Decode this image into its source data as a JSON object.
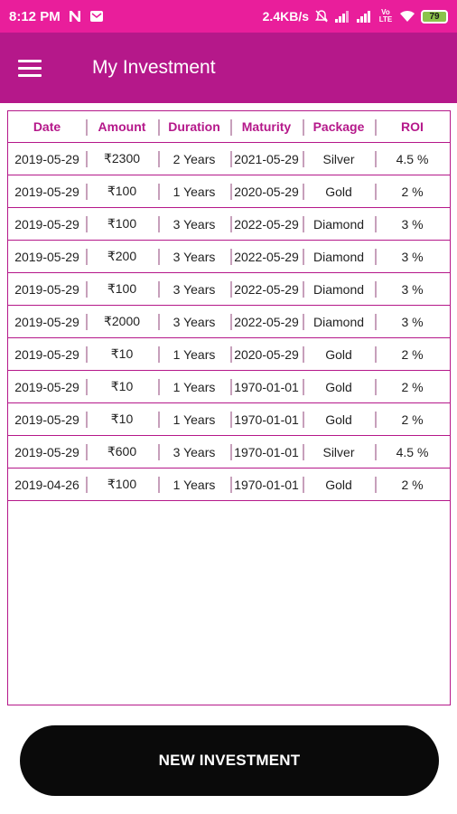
{
  "status_bar": {
    "time": "8:12 PM",
    "speed": "2.4KB/s",
    "battery": "79",
    "icons": [
      "n-notification-icon",
      "mail-icon",
      "mute-icon",
      "signal-icon",
      "signal-icon",
      "volte-icon",
      "wifi-icon",
      "battery-icon"
    ],
    "volte": "Vo LTE"
  },
  "app_bar": {
    "title": "My Investment",
    "menu_icon": "hamburger-menu-icon"
  },
  "table": {
    "columns": [
      "Date",
      "Amount",
      "Duration",
      "Maturity",
      "Package",
      "ROI"
    ],
    "rows": [
      [
        "2019-05-29",
        "₹2300",
        "2 Years",
        "2021-05-29",
        "Silver",
        "4.5 %"
      ],
      [
        "2019-05-29",
        "₹100",
        "1 Years",
        "2020-05-29",
        "Gold",
        "2 %"
      ],
      [
        "2019-05-29",
        "₹100",
        "3 Years",
        "2022-05-29",
        "Diamond",
        "3 %"
      ],
      [
        "2019-05-29",
        "₹200",
        "3 Years",
        "2022-05-29",
        "Diamond",
        "3 %"
      ],
      [
        "2019-05-29",
        "₹100",
        "3 Years",
        "2022-05-29",
        "Diamond",
        "3 %"
      ],
      [
        "2019-05-29",
        "₹2000",
        "3 Years",
        "2022-05-29",
        "Diamond",
        "3 %"
      ],
      [
        "2019-05-29",
        "₹10",
        "1 Years",
        "2020-05-29",
        "Gold",
        "2 %"
      ],
      [
        "2019-05-29",
        "₹10",
        "1 Years",
        "1970-01-01",
        "Gold",
        "2 %"
      ],
      [
        "2019-05-29",
        "₹10",
        "1 Years",
        "1970-01-01",
        "Gold",
        "2 %"
      ],
      [
        "2019-05-29",
        "₹600",
        "3 Years",
        "1970-01-01",
        "Silver",
        "4.5 %"
      ],
      [
        "2019-04-26",
        "₹100",
        "1 Years",
        "1970-01-01",
        "Gold",
        "2 %"
      ]
    ]
  },
  "actions": {
    "new_investment_label": "NEW INVESTMENT"
  },
  "colors": {
    "status_bar": "#e91e9b",
    "app_bar": "#b5188a",
    "accent": "#b5188a",
    "button": "#0a0a0a"
  }
}
